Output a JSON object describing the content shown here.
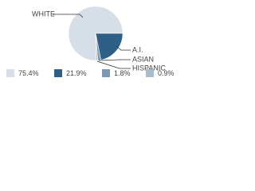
{
  "chart_data": {
    "type": "pie",
    "categories": [
      "WHITE",
      "A.I.",
      "ASIAN",
      "HISPANIC"
    ],
    "values": [
      75.4,
      21.9,
      1.8,
      0.9
    ],
    "value_labels": [
      "75.4%",
      "21.9%",
      "1.8%",
      "0.9%"
    ],
    "colors": [
      "#d6dee8",
      "#2e5f86",
      "#7d98b3",
      "#a7bccf"
    ]
  }
}
